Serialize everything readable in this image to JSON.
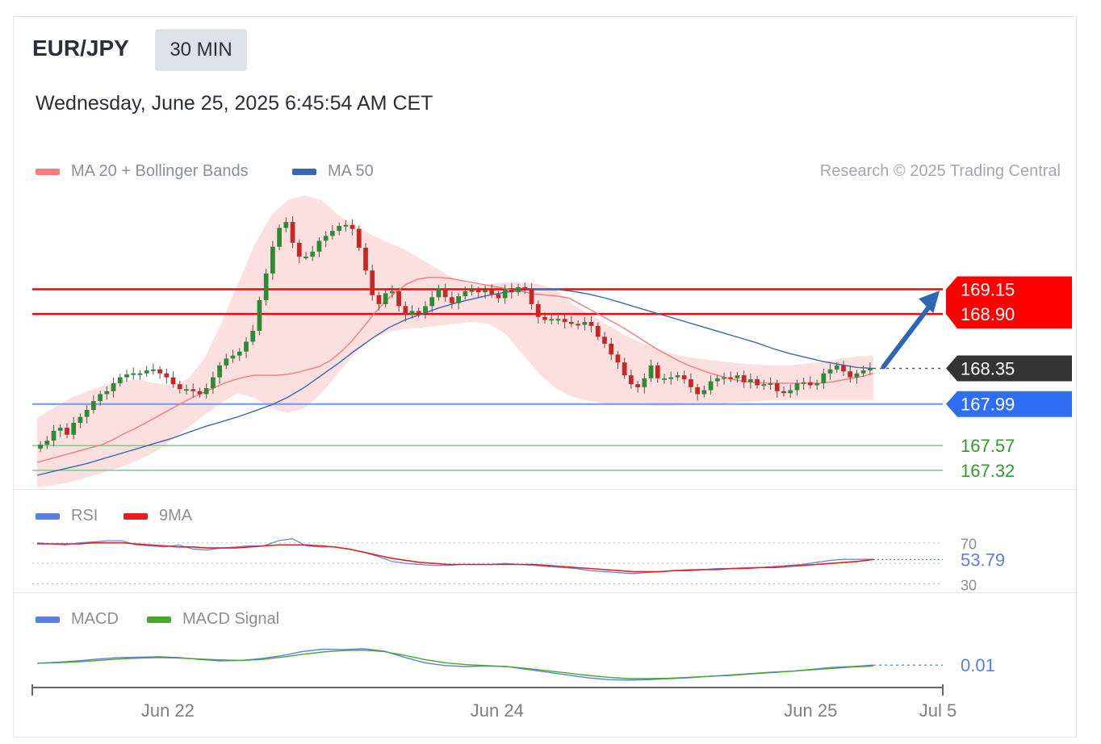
{
  "header": {
    "symbol": "EUR/JPY",
    "timeframe": "30 MIN",
    "datetime": "Wednesday, June 25, 2025 6:45:54 AM CET",
    "credit": "Research © 2025 Trading Central"
  },
  "legends": {
    "price": [
      {
        "label": "MA 20 + Bollinger Bands",
        "color": "#f47c7c"
      },
      {
        "label": "MA 50",
        "color": "#3a67b0"
      }
    ],
    "rsi": [
      {
        "label": "RSI",
        "color": "#5b7ee0"
      },
      {
        "label": "9MA",
        "color": "#e6201e"
      }
    ],
    "macd": [
      {
        "label": "MACD",
        "color": "#5b7ee0"
      },
      {
        "label": "MACD Signal",
        "color": "#48a82c"
      }
    ]
  },
  "chart_data": [
    {
      "type": "candlestick",
      "title": "EUR/JPY 30 MIN",
      "xlim": [
        0,
        160
      ],
      "ylim": [
        167.18,
        170.1
      ],
      "x_ticks": [
        {
          "x": 25,
          "label": "Jun 22"
        },
        {
          "x": 88,
          "label": "Jun 24"
        },
        {
          "x": 148,
          "label": "Jun 25"
        },
        {
          "x": 173,
          "label": "Jul 5"
        }
      ],
      "resistance": [
        {
          "value": 169.15,
          "label": "169.15",
          "color": "#ff0000"
        },
        {
          "value": 168.9,
          "label": "168.90",
          "color": "#ff0000"
        }
      ],
      "current_price": {
        "value": 168.35,
        "label": "168.35",
        "color": "#333333"
      },
      "pivot": {
        "value": 167.99,
        "label": "167.99",
        "color": "#2f6ef2"
      },
      "support": [
        {
          "value": 167.57,
          "label": "167.57",
          "color": "#2e9c2e"
        },
        {
          "value": 167.32,
          "label": "167.32",
          "color": "#2e9c2e"
        }
      ],
      "arrow": {
        "from": [
          161,
          168.35
        ],
        "to": [
          173,
          169.12
        ],
        "color": "#2f66b4"
      },
      "close": [
        167.58,
        167.62,
        167.72,
        167.75,
        167.68,
        167.8,
        167.86,
        167.93,
        168.02,
        168.09,
        168.12,
        168.2,
        168.26,
        168.29,
        168.3,
        168.3,
        168.33,
        168.34,
        168.3,
        168.26,
        168.19,
        168.14,
        168.14,
        168.12,
        168.09,
        168.15,
        168.26,
        168.38,
        168.45,
        168.48,
        168.52,
        168.62,
        168.73,
        169.04,
        169.31,
        169.58,
        169.77,
        169.83,
        169.62,
        169.48,
        169.48,
        169.53,
        169.64,
        169.69,
        169.74,
        169.79,
        169.8,
        169.76,
        169.57,
        169.34,
        169.09,
        169.0,
        169.11,
        169.13,
        168.98,
        168.89,
        168.93,
        168.91,
        168.98,
        169.07,
        169.16,
        169.07,
        169.01,
        169.08,
        169.13,
        169.14,
        169.12,
        169.14,
        169.1,
        169.06,
        169.15,
        169.12,
        169.17,
        169.15,
        169.0,
        168.87,
        168.84,
        168.85,
        168.85,
        168.82,
        168.8,
        168.79,
        168.82,
        168.78,
        168.67,
        168.6,
        168.49,
        168.41,
        168.28,
        168.19,
        168.16,
        168.25,
        168.38,
        168.25,
        168.25,
        168.26,
        168.28,
        168.24,
        168.16,
        168.09,
        168.13,
        168.22,
        168.25,
        168.26,
        168.25,
        168.28,
        168.21,
        168.24,
        168.18,
        168.19,
        168.2,
        168.12,
        168.1,
        168.13,
        168.2,
        168.21,
        168.18,
        168.2,
        168.3,
        168.34,
        168.38,
        168.32,
        168.26,
        168.3,
        168.33,
        168.35
      ],
      "ma20": [
        167.4,
        167.43,
        167.46,
        167.49,
        167.52,
        167.55,
        167.58,
        167.63,
        167.69,
        167.74,
        167.8,
        167.86,
        167.92,
        167.98,
        168.04,
        168.09,
        168.14,
        168.19,
        168.23,
        168.26,
        168.28,
        168.28,
        168.28,
        168.29,
        168.31,
        168.34,
        168.37,
        168.43,
        168.52,
        168.63,
        168.76,
        168.9,
        169.02,
        169.12,
        169.2,
        169.25,
        169.27,
        169.27,
        169.26,
        169.24,
        169.22,
        169.2,
        169.18,
        169.16,
        169.14,
        169.12,
        169.1,
        169.09,
        169.08,
        169.06,
        169.0,
        168.94,
        168.88,
        168.82,
        168.76,
        168.69,
        168.62,
        168.55,
        168.49,
        168.43,
        168.38,
        168.34,
        168.3,
        168.27,
        168.24,
        168.22,
        168.21,
        168.2,
        168.2,
        168.2,
        168.2,
        168.2,
        168.2,
        168.21,
        168.23,
        168.25,
        168.27,
        168.3
      ],
      "bb_upper": [
        167.85,
        167.95,
        168.05,
        168.12,
        168.18,
        168.22,
        168.24,
        168.2,
        168.18,
        168.24,
        168.45,
        168.8,
        169.2,
        169.6,
        169.9,
        170.05,
        170.1,
        170.05,
        169.9,
        169.8,
        169.7,
        169.62,
        169.55,
        169.45,
        169.35,
        169.25,
        169.2,
        169.2,
        169.22,
        169.22,
        169.2,
        169.15,
        169.0,
        168.9,
        168.8,
        168.7,
        168.62,
        168.55,
        168.5,
        168.46,
        168.44,
        168.42,
        168.4,
        168.39,
        168.38,
        168.38,
        168.4,
        168.42,
        168.45,
        168.47,
        168.48
      ],
      "bb_lower": [
        167.15,
        167.17,
        167.2,
        167.25,
        167.3,
        167.35,
        167.42,
        167.5,
        167.62,
        167.75,
        167.88,
        168.0,
        168.1,
        168.05,
        167.95,
        167.9,
        167.95,
        168.1,
        168.3,
        168.5,
        168.65,
        168.72,
        168.75,
        168.76,
        168.78,
        168.8,
        168.82,
        168.8,
        168.7,
        168.5,
        168.3,
        168.15,
        168.06,
        168.02,
        168.0,
        167.99,
        167.98,
        167.97,
        167.97,
        167.98,
        167.99,
        168.0,
        168.01,
        168.02,
        168.03,
        168.03,
        168.03,
        168.03,
        168.03,
        168.03,
        168.03
      ],
      "ma50": [
        167.27,
        167.31,
        167.35,
        167.39,
        167.44,
        167.49,
        167.54,
        167.59,
        167.64,
        167.7,
        167.76,
        167.81,
        167.86,
        167.92,
        167.98,
        168.06,
        168.16,
        168.28,
        168.4,
        168.53,
        168.65,
        168.76,
        168.84,
        168.9,
        168.96,
        169.01,
        169.05,
        169.09,
        169.12,
        169.14,
        169.15,
        169.15,
        169.13,
        169.1,
        169.06,
        169.01,
        168.96,
        168.91,
        168.86,
        168.81,
        168.76,
        168.71,
        168.66,
        168.61,
        168.55,
        168.5,
        168.46,
        168.42,
        168.39,
        168.36,
        168.35
      ]
    },
    {
      "type": "line",
      "title": "RSI",
      "ylim": [
        25,
        80
      ],
      "reference_lines": [
        70,
        50,
        30
      ],
      "y_ticks": [
        "70",
        "30"
      ],
      "last_value_label": "53.79",
      "series": [
        {
          "name": "RSI",
          "values": [
            70,
            69,
            68,
            70,
            71,
            72,
            72,
            68,
            67,
            66,
            68,
            64,
            63,
            65,
            66,
            67,
            67,
            72,
            74,
            67,
            66,
            66,
            64,
            61,
            57,
            52,
            50,
            49,
            48,
            48,
            49,
            49,
            49,
            50,
            49,
            48,
            47,
            46,
            45,
            43,
            42,
            41,
            40,
            41,
            42,
            43,
            44,
            44,
            45,
            45,
            46,
            46,
            47,
            48,
            49,
            51,
            53,
            54,
            54,
            54
          ]
        },
        {
          "name": "9MA",
          "values": [
            69,
            69,
            69,
            69,
            70,
            70,
            70,
            69,
            68,
            67,
            66,
            66,
            65,
            65,
            65,
            66,
            67,
            68,
            68,
            68,
            67,
            66,
            64,
            61,
            58,
            55,
            53,
            51,
            50,
            49,
            49,
            49,
            49,
            49,
            49,
            49,
            48,
            47,
            46,
            45,
            44,
            43,
            42,
            42,
            42,
            43,
            43,
            44,
            44,
            45,
            45,
            46,
            46,
            47,
            48,
            49,
            50,
            51,
            52,
            53.8
          ]
        }
      ]
    },
    {
      "type": "line",
      "title": "MACD",
      "ylim": [
        -0.4,
        0.6
      ],
      "last_value_label": "0.01",
      "series": [
        {
          "name": "MACD",
          "values": [
            0.05,
            0.07,
            0.1,
            0.14,
            0.17,
            0.18,
            0.19,
            0.17,
            0.13,
            0.1,
            0.11,
            0.15,
            0.21,
            0.3,
            0.35,
            0.34,
            0.36,
            0.31,
            0.18,
            0.06,
            0.0,
            -0.02,
            -0.01,
            -0.02,
            -0.08,
            -0.14,
            -0.2,
            -0.26,
            -0.3,
            -0.31,
            -0.3,
            -0.28,
            -0.26,
            -0.23,
            -0.2,
            -0.17,
            -0.14,
            -0.12,
            -0.08,
            -0.04,
            -0.02,
            0.01
          ]
        },
        {
          "name": "MACD Signal",
          "values": [
            0.05,
            0.06,
            0.08,
            0.11,
            0.14,
            0.16,
            0.17,
            0.16,
            0.14,
            0.12,
            0.11,
            0.13,
            0.18,
            0.24,
            0.29,
            0.32,
            0.33,
            0.3,
            0.22,
            0.13,
            0.06,
            0.02,
            0.0,
            -0.02,
            -0.06,
            -0.11,
            -0.16,
            -0.21,
            -0.25,
            -0.28,
            -0.28,
            -0.27,
            -0.25,
            -0.23,
            -0.21,
            -0.18,
            -0.15,
            -0.12,
            -0.09,
            -0.06,
            -0.03,
            -0.01
          ]
        }
      ]
    }
  ]
}
